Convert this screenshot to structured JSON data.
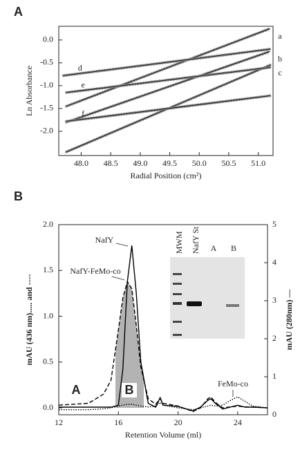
{
  "chart_data": [
    {
      "type": "line",
      "panel_label": "A",
      "xlabel": "Radial Position (cm²)",
      "ylabel": "Ln Absorbance",
      "xlim": [
        47.62,
        51.25
      ],
      "ylim": [
        -2.53,
        0.3
      ],
      "xticks": [
        {
          "value": 48,
          "label": "48.0"
        },
        48.5,
        {
          "value": 49,
          "label": "49.0"
        },
        49.5,
        {
          "value": 50,
          "label": "50.0"
        },
        50.5,
        {
          "value": 51,
          "label": "51.0"
        }
      ],
      "yticks": [
        {
          "value": 0,
          "label": "0.0"
        },
        -0.5,
        {
          "value": -1,
          "label": "-1.0"
        },
        -1.5,
        {
          "value": -2,
          "label": "-2.0"
        }
      ],
      "series": [
        {
          "name": "a",
          "color": "#8a8a8a",
          "x": [
            47.75,
            51.2
          ],
          "values": [
            -1.45,
            0.25
          ]
        },
        {
          "name": "b",
          "color": "#8a8a8a",
          "x": [
            47.75,
            51.2
          ],
          "values": [
            -1.8,
            -0.25
          ]
        },
        {
          "name": "c",
          "color": "#8a8a8a",
          "x": [
            47.75,
            51.2
          ],
          "values": [
            -2.45,
            -0.55
          ]
        },
        {
          "name": "d",
          "color": "#8a8a8a",
          "x": [
            47.7,
            51.2
          ],
          "values": [
            -0.78,
            -0.2
          ]
        },
        {
          "name": "e",
          "color": "#8a8a8a",
          "x": [
            47.75,
            51.2
          ],
          "values": [
            -1.15,
            -0.6
          ]
        },
        {
          "name": "f",
          "color": "#8a8a8a",
          "x": [
            47.75,
            51.2
          ],
          "values": [
            -1.78,
            -1.22
          ]
        }
      ]
    },
    {
      "type": "line",
      "panel_label": "B",
      "xlabel": "Retention Volume (ml)",
      "ylabel": "mAU (436 nm)..... and ----",
      "y2label": "mAU (280nm) —",
      "xlim": [
        12,
        26
      ],
      "ylim": [
        -0.075,
        2.0
      ],
      "y2lim": [
        0,
        5
      ],
      "xticks": [
        12,
        16,
        20,
        24
      ],
      "yticks": [
        {
          "value": 0,
          "label": "0.0"
        },
        0.5,
        {
          "value": 1,
          "label": "1.0"
        },
        1.5,
        {
          "value": 2,
          "label": "2.0"
        }
      ],
      "y2ticks": [
        0,
        1,
        2,
        3,
        4,
        5
      ],
      "shaded_range": [
        15.8,
        17.7
      ],
      "x": [
        12,
        14,
        15,
        15.5,
        16,
        16.3,
        16.6,
        16.9,
        17.2,
        17.5,
        18,
        18.5,
        18.8,
        19,
        20,
        21,
        21.5,
        22,
        22.2,
        22.5,
        23,
        23.5,
        24,
        24.5,
        25,
        26
      ],
      "series": [
        {
          "name": "NafY",
          "color": "#000000",
          "style": "solid",
          "axis": "y2",
          "values": [
            0.2,
            0.2,
            0.2,
            0.2,
            0.25,
            1.2,
            3.5,
            4.45,
            3.2,
            1.4,
            0.3,
            0.2,
            0.45,
            0.25,
            0.22,
            0.1,
            0.2,
            0.38,
            0.42,
            0.3,
            0.15,
            0.2,
            0.25,
            0.2,
            0.2,
            0.18
          ]
        },
        {
          "name": "NafY-FeMo-co",
          "color": "#000000",
          "style": "dashed",
          "values": [
            0.03,
            0.05,
            0.15,
            0.3,
            0.85,
            1.2,
            1.38,
            1.3,
            0.9,
            0.45,
            0.1,
            0.04,
            0.1,
            0.05,
            0.02,
            -0.04,
            0.0,
            0.1,
            0.12,
            0.06,
            0.0,
            0.01,
            0.02,
            0.01,
            0.01,
            0.0
          ]
        },
        {
          "name": "FeMo-co",
          "color": "#000000",
          "style": "dotted",
          "values": [
            -0.02,
            -0.02,
            -0.01,
            0.0,
            0.02,
            0.03,
            0.04,
            0.04,
            0.03,
            0.02,
            0.01,
            0.02,
            0.06,
            0.03,
            0.0,
            -0.02,
            0.0,
            0.02,
            0.03,
            0.02,
            0.03,
            0.08,
            0.12,
            0.07,
            0.02,
            0.0
          ]
        }
      ],
      "annotations": [
        "NafY",
        "NafY-FeMo-co",
        "FeMo-co",
        "A",
        "B"
      ],
      "inset_labels": [
        "MWM",
        "NafY St",
        "A",
        "B"
      ]
    }
  ]
}
